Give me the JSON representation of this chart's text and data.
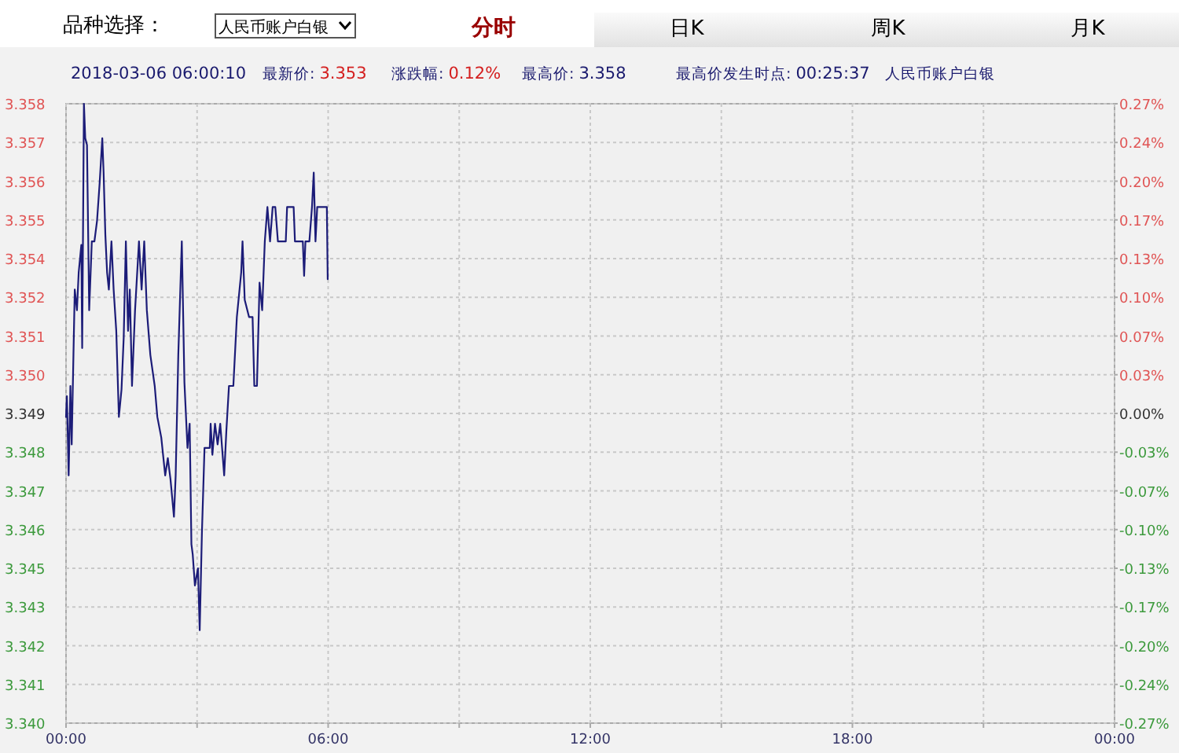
{
  "chart_data": {
    "type": "line",
    "annotations": [
      "品种选择：",
      "人民币账户白银",
      "分时",
      "日K",
      "周K",
      "月K",
      "2018-03-06 06:00:10",
      "最新价:",
      "3.353",
      "涨跌幅:",
      "0.12%",
      "最高价:",
      "3.358",
      "最高价发生时点:",
      "00:25:37",
      "人民币账户白银"
    ],
    "x": [
      0.0,
      0.02,
      0.06,
      0.1,
      0.13,
      0.17,
      0.2,
      0.25,
      0.29,
      0.35,
      0.37,
      0.41,
      0.44,
      0.48,
      0.53,
      0.59,
      0.65,
      0.71,
      0.77,
      0.83,
      0.86,
      0.9,
      0.94,
      0.98,
      1.04,
      1.09,
      1.15,
      1.21,
      1.27,
      1.32,
      1.37,
      1.42,
      1.46,
      1.51,
      1.58,
      1.67,
      1.73,
      1.79,
      1.85,
      1.93,
      2.03,
      2.09,
      2.18,
      2.27,
      2.33,
      2.39,
      2.47,
      2.51,
      2.57,
      2.65,
      2.71,
      2.78,
      2.83,
      2.87,
      2.9,
      2.95,
      3.02,
      3.06,
      3.11,
      3.17,
      3.29,
      3.31,
      3.35,
      3.41,
      3.47,
      3.53,
      3.62,
      3.67,
      3.73,
      3.83,
      3.91,
      4.01,
      4.04,
      4.09,
      4.19,
      4.27,
      4.31,
      4.37,
      4.43,
      4.49,
      4.55,
      4.61,
      4.67,
      4.73,
      4.79,
      4.85,
      5.03,
      5.06,
      5.21,
      5.24,
      5.42,
      5.45,
      5.48,
      5.57,
      5.63,
      5.67,
      5.71,
      5.75,
      5.97,
      5.99
    ],
    "series": [
      {
        "color": "#1c1c78",
        "values": [
          3.3489,
          3.3495,
          3.3472,
          3.3498,
          3.3481,
          3.3507,
          3.3526,
          3.352,
          3.3531,
          3.3539,
          3.3509,
          3.358,
          3.357,
          3.3568,
          3.352,
          3.354,
          3.354,
          3.3546,
          3.3557,
          3.357,
          3.356,
          3.3542,
          3.3531,
          3.3526,
          3.354,
          3.3526,
          3.3514,
          3.3489,
          3.3497,
          3.3512,
          3.354,
          3.3514,
          3.3526,
          3.3498,
          3.352,
          3.354,
          3.3526,
          3.354,
          3.352,
          3.3507,
          3.3498,
          3.3489,
          3.3483,
          3.3472,
          3.3477,
          3.3471,
          3.346,
          3.3472,
          3.3507,
          3.354,
          3.3499,
          3.348,
          3.3487,
          3.3452,
          3.3449,
          3.344,
          3.3445,
          3.3427,
          3.3455,
          3.348,
          3.348,
          3.3487,
          3.3478,
          3.3487,
          3.3481,
          3.3487,
          3.3472,
          3.3485,
          3.3498,
          3.3498,
          3.3518,
          3.3531,
          3.354,
          3.3523,
          3.3518,
          3.3518,
          3.3498,
          3.3498,
          3.3528,
          3.352,
          3.354,
          3.355,
          3.354,
          3.355,
          3.355,
          3.354,
          3.354,
          3.355,
          3.355,
          3.354,
          3.354,
          3.353,
          3.354,
          3.354,
          3.355,
          3.356,
          3.354,
          3.355,
          3.355,
          3.3529
        ]
      }
    ],
    "xlim": [
      0,
      24
    ],
    "xticks": [
      {
        "value": 0,
        "label": "00:00"
      },
      {
        "value": 3,
        "label": null
      },
      {
        "value": 6,
        "label": "06:00"
      },
      {
        "value": 9,
        "label": null
      },
      {
        "value": 12,
        "label": "12:00"
      },
      {
        "value": 15,
        "label": null
      },
      {
        "value": 18,
        "label": "18:00"
      },
      {
        "value": 21,
        "label": null
      },
      {
        "value": 24,
        "label": "00:00"
      }
    ],
    "ylim": [
      3.34,
      3.358
    ],
    "yticks": [
      {
        "value": 3.34,
        "label": "3.340"
      },
      {
        "value": 3.341125,
        "label": "3.341"
      },
      {
        "value": 3.34225,
        "label": "3.342"
      },
      {
        "value": 3.343375,
        "label": "3.343"
      },
      {
        "value": 3.3445,
        "label": "3.345"
      },
      {
        "value": 3.345625,
        "label": "3.346"
      },
      {
        "value": 3.34675,
        "label": "3.347"
      },
      {
        "value": 3.347875,
        "label": "3.348"
      },
      {
        "value": 3.349,
        "label": "3.349"
      },
      {
        "value": 3.350125,
        "label": "3.350"
      },
      {
        "value": 3.35125,
        "label": "3.351"
      },
      {
        "value": 3.352375,
        "label": "3.352"
      },
      {
        "value": 3.3535,
        "label": "3.354"
      },
      {
        "value": 3.354625,
        "label": "3.355"
      },
      {
        "value": 3.35575,
        "label": "3.356"
      },
      {
        "value": 3.356875,
        "label": "3.357"
      },
      {
        "value": 3.358,
        "label": "3.358"
      }
    ],
    "y2lim": [
      -0.27,
      0.27
    ],
    "y2ticks": [
      {
        "value": -0.27,
        "label": "-0.27%"
      },
      {
        "value": -0.23625,
        "label": "-0.24%"
      },
      {
        "value": -0.2025,
        "label": "-0.20%"
      },
      {
        "value": -0.16875,
        "label": "-0.17%"
      },
      {
        "value": -0.135,
        "label": "-0.13%"
      },
      {
        "value": -0.10125,
        "label": "-0.10%"
      },
      {
        "value": -0.0675,
        "label": "-0.07%"
      },
      {
        "value": -0.03375,
        "label": "-0.03%"
      },
      {
        "value": 0,
        "label": "0.00%"
      },
      {
        "value": 0.03375,
        "label": "0.03%"
      },
      {
        "value": 0.0675,
        "label": "0.07%"
      },
      {
        "value": 0.10125,
        "label": "0.10%"
      },
      {
        "value": 0.135,
        "label": "0.13%"
      },
      {
        "value": 0.16875,
        "label": "0.17%"
      },
      {
        "value": 0.2025,
        "label": "0.20%"
      },
      {
        "value": 0.23625,
        "label": "0.24%"
      },
      {
        "value": 0.27,
        "label": "0.27%"
      }
    ],
    "grid": true
  }
}
